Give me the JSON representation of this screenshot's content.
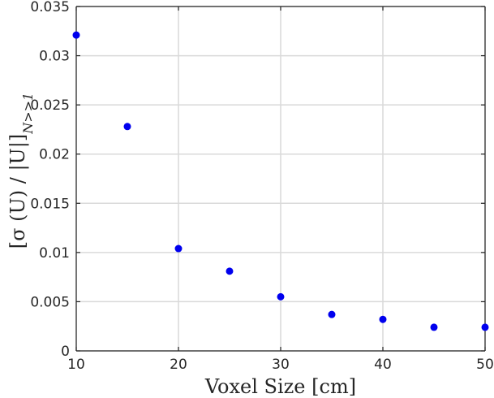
{
  "chart_data": {
    "type": "scatter",
    "xlabel": "Voxel Size [cm]",
    "ylabel": "[σ(U) / |U|]_{N>>1}",
    "ylabel_main": "[σ (U) / |U|]",
    "ylabel_sub": "N>>1",
    "xlim": [
      10,
      50
    ],
    "ylim": [
      0,
      0.035
    ],
    "x_ticks": [
      10,
      20,
      30,
      40,
      50
    ],
    "x_tick_labels": [
      "10",
      "20",
      "30",
      "40",
      "50"
    ],
    "y_ticks": [
      0,
      0.005,
      0.01,
      0.015,
      0.02,
      0.025,
      0.03,
      0.035
    ],
    "y_tick_labels": [
      "0",
      "0.005",
      "0.01",
      "0.015",
      "0.02",
      "0.025",
      "0.03",
      "0.035"
    ],
    "grid": true,
    "marker_color": "#0000ee",
    "series": [
      {
        "x": [
          10,
          15,
          20,
          25,
          30,
          35,
          40,
          45,
          50
        ],
        "y": [
          0.0321,
          0.0228,
          0.0104,
          0.0081,
          0.0055,
          0.0037,
          0.0032,
          0.0024,
          0.0024
        ]
      }
    ]
  }
}
